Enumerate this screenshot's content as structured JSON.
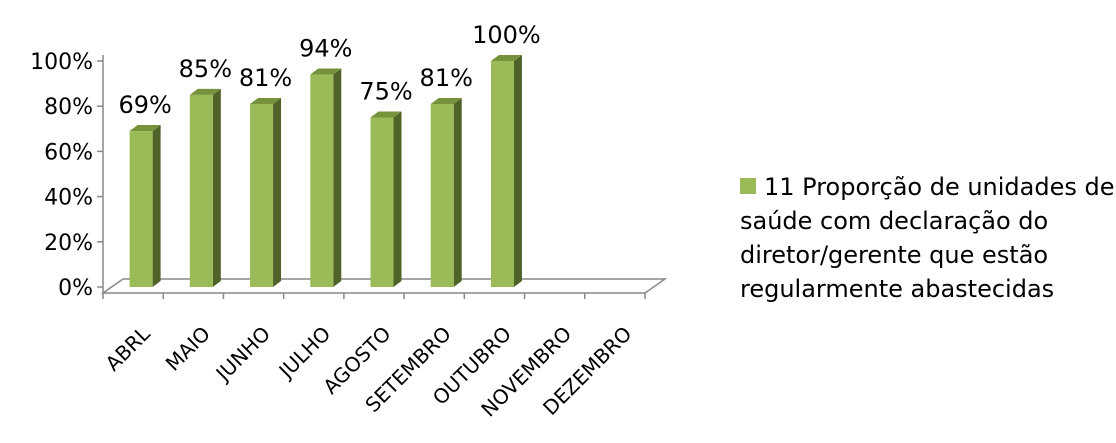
{
  "chart_data": {
    "type": "bar",
    "style": "3d-column",
    "categories": [
      "ABRL",
      "MAIO",
      "JUNHO",
      "JULHO",
      "AGOSTO",
      "SETEMBRO",
      "OUTUBRO",
      "NOVEMBRO",
      "DEZEMBRO"
    ],
    "series": [
      {
        "name": "11 Proporção de unidades de saúde com declaração do diretor/gerente que estão regularmente abastecidas",
        "values": [
          69,
          85,
          81,
          94,
          75,
          81,
          100,
          null,
          null
        ],
        "value_labels": [
          "69%",
          "85%",
          "81%",
          "94%",
          "75%",
          "81%",
          "100%",
          "",
          ""
        ],
        "color": "#9bbb59"
      }
    ],
    "y_ticks": [
      "0%",
      "20%",
      "40%",
      "60%",
      "80%",
      "100%"
    ],
    "ylim": [
      0,
      100
    ],
    "grid": false,
    "legend_position": "right"
  }
}
